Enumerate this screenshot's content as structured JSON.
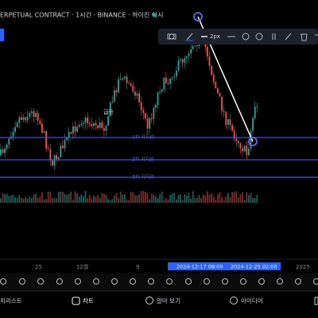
{
  "header": {
    "title": "ERPETUAL CONTRACT · 1시간 · BINANCE · 하이킨 아시"
  },
  "toolbar": {
    "stroke": "2px"
  },
  "annotations": {
    "surge": "급등",
    "support1": "1차 지지선",
    "support2": "2차 지지선",
    "support3": "3차 지지선"
  },
  "xaxis": {
    "labels": [
      "25",
      "12월",
      "9",
      "2025"
    ]
  },
  "date_range": {
    "start": "2024-12-17  08:00",
    "end": "2024-12-25  02:00"
  },
  "nav": [
    "치리스트",
    "차트",
    "알아 보기",
    "아이디어"
  ]
}
